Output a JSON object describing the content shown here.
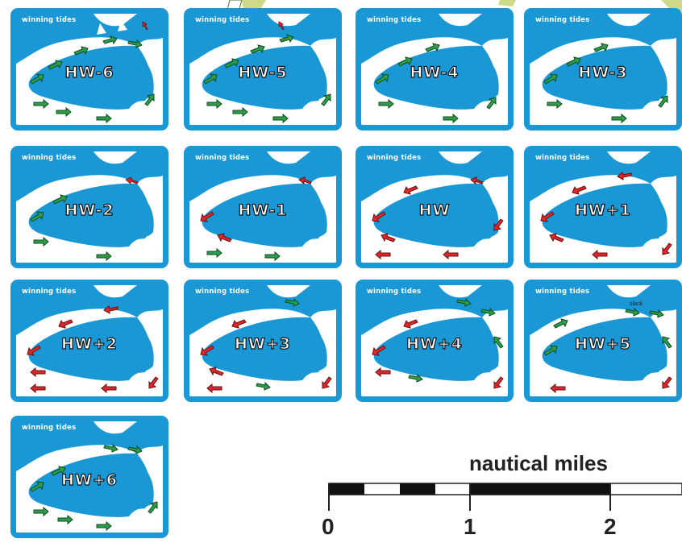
{
  "panel_title": "winning tides",
  "panels": [
    {
      "label": "HW-6"
    },
    {
      "label": "HW-5"
    },
    {
      "label": "HW-4"
    },
    {
      "label": "HW-3"
    },
    {
      "label": "HW-2"
    },
    {
      "label": "HW-1"
    },
    {
      "label": "HW"
    },
    {
      "label": "HW+1"
    },
    {
      "label": "HW+2"
    },
    {
      "label": "HW+3"
    },
    {
      "label": "HW+4"
    },
    {
      "label": "HW+5"
    },
    {
      "label": "HW+6"
    }
  ],
  "slack_note": "slack",
  "scale": {
    "title": "nautical miles",
    "ticks": [
      "0",
      "1",
      "2"
    ]
  },
  "colors": {
    "sea": "#1a98d5",
    "flood_arrow": "#2e9e48",
    "ebb_arrow": "#e02729"
  }
}
